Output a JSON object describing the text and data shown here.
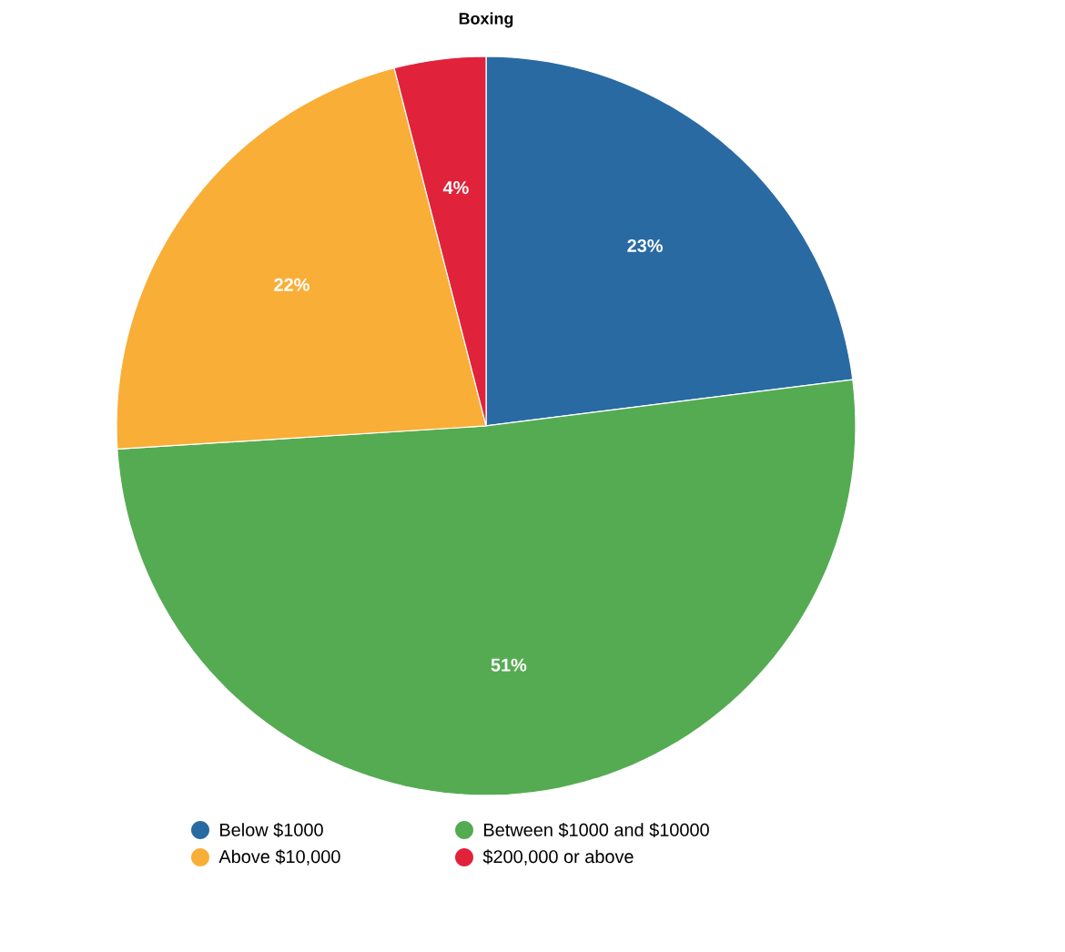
{
  "chart_data": {
    "type": "pie",
    "title": "Boxing",
    "categories": [
      "Below $1000",
      "Between $1000 and $10000",
      "Above $10,000",
      "$200,000 or above"
    ],
    "values": [
      23,
      51,
      22,
      4
    ],
    "value_labels": [
      "23%",
      "51%",
      "22%",
      "4%"
    ],
    "colors": [
      "#2a6aa3",
      "#55ab52",
      "#f9ae37",
      "#e0233b"
    ],
    "legend": "bottom"
  }
}
